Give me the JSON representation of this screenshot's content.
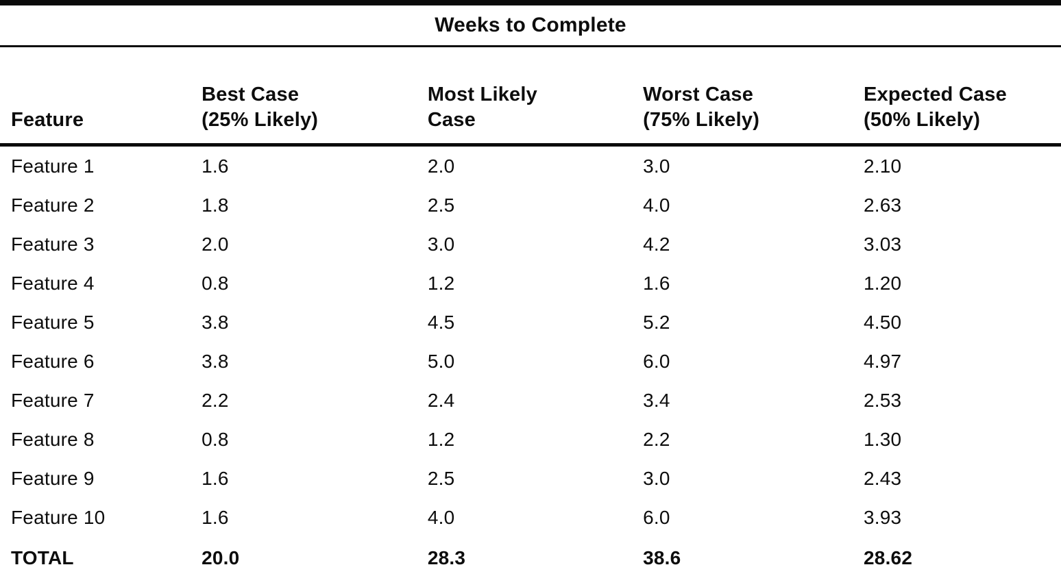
{
  "page": {
    "background": "#ffffff",
    "text_color": "#0d0d0d",
    "rule_color": "#0a0a0a"
  },
  "table": {
    "spanner": "Weeks to Complete",
    "columns": [
      {
        "line1": "Feature",
        "line2": ""
      },
      {
        "line1": "Best Case",
        "line2": "(25% Likely)"
      },
      {
        "line1": "Most Likely",
        "line2": "Case"
      },
      {
        "line1": "Worst Case",
        "line2": "(75% Likely)"
      },
      {
        "line1": "Expected Case",
        "line2": "(50% Likely)"
      }
    ],
    "rows": [
      {
        "feature": "Feature 1",
        "best": "1.6",
        "most_likely": "2.0",
        "worst": "3.0",
        "expected": "2.10"
      },
      {
        "feature": "Feature 2",
        "best": "1.8",
        "most_likely": "2.5",
        "worst": "4.0",
        "expected": "2.63"
      },
      {
        "feature": "Feature 3",
        "best": "2.0",
        "most_likely": "3.0",
        "worst": "4.2",
        "expected": "3.03"
      },
      {
        "feature": "Feature 4",
        "best": "0.8",
        "most_likely": "1.2",
        "worst": "1.6",
        "expected": "1.20"
      },
      {
        "feature": "Feature 5",
        "best": "3.8",
        "most_likely": "4.5",
        "worst": "5.2",
        "expected": "4.50"
      },
      {
        "feature": "Feature 6",
        "best": "3.8",
        "most_likely": "5.0",
        "worst": "6.0",
        "expected": "4.97"
      },
      {
        "feature": "Feature 7",
        "best": "2.2",
        "most_likely": "2.4",
        "worst": "3.4",
        "expected": "2.53"
      },
      {
        "feature": "Feature 8",
        "best": "0.8",
        "most_likely": "1.2",
        "worst": "2.2",
        "expected": "1.30"
      },
      {
        "feature": "Feature 9",
        "best": "1.6",
        "most_likely": "2.5",
        "worst": "3.0",
        "expected": "2.43"
      },
      {
        "feature": "Feature 10",
        "best": "1.6",
        "most_likely": "4.0",
        "worst": "6.0",
        "expected": "3.93"
      }
    ],
    "total": {
      "feature": "TOTAL",
      "best": "20.0",
      "most_likely": "28.3",
      "worst": "38.6",
      "expected": "28.62"
    }
  },
  "chart_data": {
    "type": "table",
    "title": "Weeks to Complete",
    "columns": [
      "Feature",
      "Best Case (25% Likely)",
      "Most Likely Case",
      "Worst Case (75% Likely)",
      "Expected Case (50% Likely)"
    ],
    "rows": [
      [
        "Feature 1",
        1.6,
        2.0,
        3.0,
        2.1
      ],
      [
        "Feature 2",
        1.8,
        2.5,
        4.0,
        2.63
      ],
      [
        "Feature 3",
        2.0,
        3.0,
        4.2,
        3.03
      ],
      [
        "Feature 4",
        0.8,
        1.2,
        1.6,
        1.2
      ],
      [
        "Feature 5",
        3.8,
        4.5,
        5.2,
        4.5
      ],
      [
        "Feature 6",
        3.8,
        5.0,
        6.0,
        4.97
      ],
      [
        "Feature 7",
        2.2,
        2.4,
        3.4,
        2.53
      ],
      [
        "Feature 8",
        0.8,
        1.2,
        2.2,
        1.3
      ],
      [
        "Feature 9",
        1.6,
        2.5,
        3.0,
        2.43
      ],
      [
        "Feature 10",
        1.6,
        4.0,
        6.0,
        3.93
      ]
    ],
    "total_row": [
      "TOTAL",
      20.0,
      28.3,
      38.6,
      28.62
    ]
  }
}
